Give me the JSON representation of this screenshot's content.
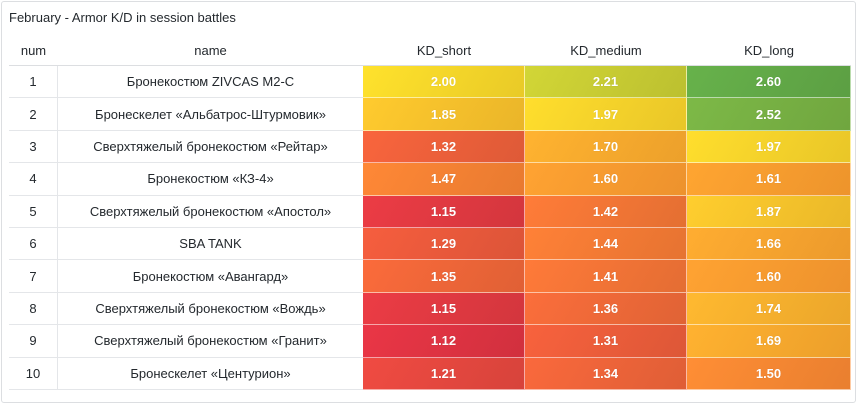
{
  "panel": {
    "title": "February - Armor K/D in session battles"
  },
  "chart_data": {
    "type": "table",
    "title": "February - Armor K/D in session battles",
    "columns": [
      "num",
      "name",
      "KD_short",
      "KD_medium",
      "KD_long"
    ],
    "rows": [
      {
        "num": "1",
        "name": "Бронекостюм ZIVCAS M2-C",
        "KD_short": "2.00",
        "KD_medium": "2.21",
        "KD_long": "2.60"
      },
      {
        "num": "2",
        "name": "Бронескелет «Альбатрос-Штурмовик»",
        "KD_short": "1.85",
        "KD_medium": "1.97",
        "KD_long": "2.52"
      },
      {
        "num": "3",
        "name": "Сверхтяжелый бронекостюм «Рейтар»",
        "KD_short": "1.32",
        "KD_medium": "1.70",
        "KD_long": "1.97"
      },
      {
        "num": "4",
        "name": "Бронекостюм «КЗ-4»",
        "KD_short": "1.47",
        "KD_medium": "1.60",
        "KD_long": "1.61"
      },
      {
        "num": "5",
        "name": "Сверхтяжелый бронекостюм «Апостол»",
        "KD_short": "1.15",
        "KD_medium": "1.42",
        "KD_long": "1.87"
      },
      {
        "num": "6",
        "name": "SBA TANK",
        "KD_short": "1.29",
        "KD_medium": "1.44",
        "KD_long": "1.66"
      },
      {
        "num": "7",
        "name": "Бронекостюм «Авангард»",
        "KD_short": "1.35",
        "KD_medium": "1.41",
        "KD_long": "1.60"
      },
      {
        "num": "8",
        "name": "Сверхтяжелый бронекостюм «Вождь»",
        "KD_short": "1.15",
        "KD_medium": "1.36",
        "KD_long": "1.74"
      },
      {
        "num": "9",
        "name": "Сверхтяжелый бронекостюм «Гранит»",
        "KD_short": "1.12",
        "KD_medium": "1.31",
        "KD_long": "1.69"
      },
      {
        "num": "10",
        "name": "Бронескелет «Центурион»",
        "KD_short": "1.21",
        "KD_medium": "1.34",
        "KD_long": "1.50"
      }
    ],
    "color_scale": {
      "min": 1.1,
      "max": 2.65,
      "low": "#e02f44",
      "mid": "#fade2a",
      "high": "#56a64b"
    }
  }
}
